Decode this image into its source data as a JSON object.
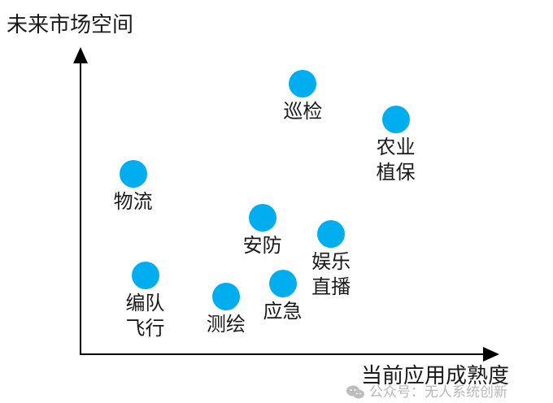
{
  "chart_data": {
    "type": "scatter",
    "title": "",
    "xlabel": "当前应用成熟度",
    "ylabel": "未来市场空间",
    "xlim": [
      0,
      10
    ],
    "ylim": [
      0,
      10
    ],
    "grid": false,
    "legend": "none",
    "point_color": "#00aeef",
    "points": [
      {
        "label": "巡检",
        "lines": [
          "巡检"
        ],
        "x": 5.5,
        "y": 9.9
      },
      {
        "label": "农业植保",
        "lines": [
          "农业",
          "植保"
        ],
        "x": 7.8,
        "y": 8.6
      },
      {
        "label": "物流",
        "lines": [
          "物流"
        ],
        "x": 1.3,
        "y": 6.6
      },
      {
        "label": "安防",
        "lines": [
          "安防"
        ],
        "x": 4.5,
        "y": 5.0
      },
      {
        "label": "娱乐直播",
        "lines": [
          "娱乐",
          "直播"
        ],
        "x": 6.2,
        "y": 4.4
      },
      {
        "label": "编队飞行",
        "lines": [
          "编队",
          "飞行"
        ],
        "x": 1.6,
        "y": 2.9
      },
      {
        "label": "应急",
        "lines": [
          "应急"
        ],
        "x": 5.0,
        "y": 2.6
      },
      {
        "label": "测绘",
        "lines": [
          "测绘"
        ],
        "x": 3.6,
        "y": 2.1
      }
    ]
  },
  "axes": {
    "y_title": "未来市场空间",
    "x_title": "当前应用成熟度",
    "color": "#000000"
  },
  "watermark": {
    "text": "公众号：无人系统创新"
  }
}
